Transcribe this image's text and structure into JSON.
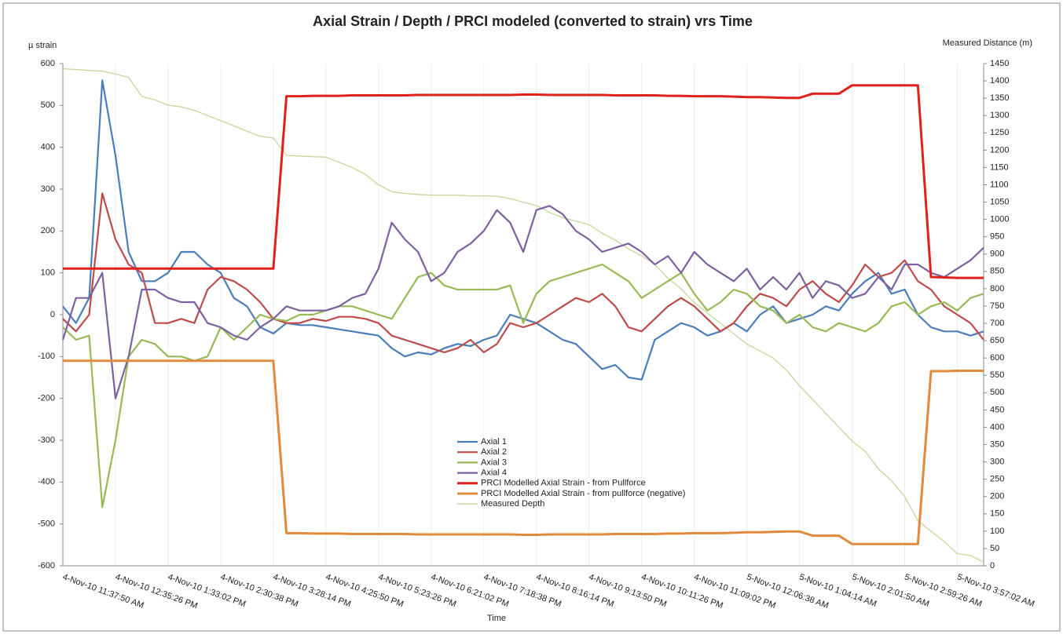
{
  "chart_data": {
    "type": "line",
    "title": "Axial Strain / Depth / PRCI modeled (converted to strain) vrs Time",
    "y_label": "µ strain",
    "y2_label": "Measured Distance (m)",
    "x_label": "Time",
    "categories": [
      "4-Nov-10 11:37:50 AM",
      null,
      null,
      null,
      "4-Nov-10 12:35:26 PM",
      null,
      null,
      null,
      "4-Nov-10 1:33:02 PM",
      null,
      null,
      null,
      "4-Nov-10 2:30:38 PM",
      null,
      null,
      null,
      "4-Nov-10 3:28:14 PM",
      null,
      null,
      null,
      "4-Nov-10 4:25:50 PM",
      null,
      null,
      null,
      "4-Nov-10 5:23:26 PM",
      null,
      null,
      null,
      "4-Nov-10 6:21:02 PM",
      null,
      null,
      null,
      "4-Nov-10 7:18:38 PM",
      null,
      null,
      null,
      "4-Nov-10 8:16:14 PM",
      null,
      null,
      null,
      "4-Nov-10 9:13:50 PM",
      null,
      null,
      null,
      "4-Nov-10 10:11:26 PM",
      null,
      null,
      null,
      "4-Nov-10 11:09:02 PM",
      null,
      null,
      null,
      "5-Nov-10 12:06:38 AM",
      null,
      null,
      null,
      "5-Nov-10 1:04:14 AM",
      null,
      null,
      null,
      "5-Nov-10 2:01:50 AM",
      null,
      null,
      null,
      "5-Nov-10 2:59:26 AM",
      null,
      null,
      null,
      "5-Nov-10 3:57:02 AM",
      null,
      null
    ],
    "series": [
      {
        "name": "Axial 1",
        "color": "#4a7ebb",
        "width": 2.2,
        "values": [
          20,
          -20,
          40,
          560,
          380,
          150,
          80,
          80,
          100,
          150,
          150,
          120,
          100,
          40,
          20,
          -30,
          -45,
          -20,
          -25,
          -25,
          -30,
          -35,
          -40,
          -45,
          -50,
          -80,
          -100,
          -90,
          -95,
          -80,
          -70,
          -75,
          -60,
          -50,
          0,
          -10,
          -20,
          -40,
          -60,
          -70,
          -100,
          -130,
          -120,
          -150,
          -155,
          -60,
          -40,
          -20,
          -30,
          -50,
          -40,
          -20,
          -40,
          0,
          20,
          -20,
          -10,
          0,
          20,
          10,
          50,
          80,
          100,
          50,
          60,
          0,
          -30,
          -40,
          -40,
          -50,
          -40
        ]
      },
      {
        "name": "Axial 2",
        "color": "#be4b48",
        "width": 2.2,
        "values": [
          -10,
          -40,
          0,
          290,
          180,
          120,
          100,
          -20,
          -20,
          -10,
          -20,
          60,
          90,
          80,
          60,
          30,
          -10,
          -20,
          -20,
          -10,
          -15,
          -5,
          -5,
          -10,
          -20,
          -50,
          -60,
          -70,
          -80,
          -90,
          -80,
          -60,
          -90,
          -70,
          -20,
          -30,
          -20,
          0,
          20,
          40,
          30,
          50,
          20,
          -30,
          -40,
          -10,
          20,
          40,
          20,
          -10,
          -40,
          -20,
          20,
          50,
          40,
          20,
          60,
          80,
          50,
          30,
          70,
          120,
          90,
          100,
          130,
          80,
          60,
          20,
          0,
          -20,
          -60
        ]
      },
      {
        "name": "Axial 3",
        "color": "#98b954",
        "width": 2.2,
        "values": [
          -30,
          -60,
          -50,
          -460,
          -300,
          -100,
          -60,
          -70,
          -100,
          -100,
          -110,
          -100,
          -30,
          -60,
          -30,
          0,
          -10,
          -15,
          0,
          0,
          10,
          20,
          20,
          10,
          0,
          -10,
          40,
          90,
          100,
          70,
          60,
          60,
          60,
          60,
          70,
          -20,
          50,
          80,
          90,
          100,
          110,
          120,
          100,
          80,
          40,
          60,
          80,
          100,
          50,
          10,
          30,
          60,
          50,
          20,
          10,
          -20,
          0,
          -30,
          -40,
          -20,
          -30,
          -40,
          -20,
          20,
          30,
          0,
          20,
          30,
          10,
          40,
          50
        ]
      },
      {
        "name": "Axial 4",
        "color": "#7d60a0",
        "width": 2.2,
        "values": [
          -60,
          40,
          40,
          100,
          -200,
          -100,
          60,
          60,
          40,
          30,
          30,
          -20,
          -30,
          -50,
          -60,
          -30,
          -10,
          20,
          10,
          10,
          10,
          20,
          40,
          50,
          110,
          220,
          180,
          150,
          80,
          100,
          150,
          170,
          200,
          250,
          220,
          150,
          250,
          260,
          240,
          200,
          180,
          150,
          160,
          170,
          150,
          120,
          140,
          100,
          150,
          120,
          100,
          80,
          110,
          60,
          90,
          60,
          100,
          40,
          80,
          70,
          40,
          50,
          90,
          60,
          120,
          120,
          100,
          90,
          110,
          130,
          160
        ]
      },
      {
        "name": "PRCI Modelled Axial Strain - from Pullforce",
        "color": "#e0201b",
        "width": 3,
        "values": [
          110,
          110,
          110,
          110,
          110,
          110,
          110,
          110,
          110,
          110,
          110,
          110,
          110,
          110,
          110,
          110,
          110,
          522,
          522,
          523,
          523,
          523,
          524,
          524,
          524,
          524,
          524,
          525,
          525,
          525,
          525,
          525,
          525,
          525,
          525,
          526,
          526,
          525,
          525,
          525,
          525,
          525,
          524,
          524,
          524,
          524,
          523,
          523,
          522,
          522,
          522,
          521,
          520,
          520,
          519,
          518,
          518,
          528,
          528,
          528,
          548,
          548,
          548,
          548,
          548,
          548,
          90,
          89,
          88,
          88,
          88
        ]
      },
      {
        "name": "PRCI Modelled Axial Strain - from pullforce (negative)",
        "color": "#e28a3b",
        "width": 3,
        "values": [
          -110,
          -110,
          -110,
          -110,
          -110,
          -110,
          -110,
          -110,
          -110,
          -110,
          -110,
          -110,
          -110,
          -110,
          -110,
          -110,
          -110,
          -522,
          -522,
          -523,
          -523,
          -523,
          -524,
          -524,
          -524,
          -524,
          -524,
          -525,
          -525,
          -525,
          -525,
          -525,
          -525,
          -525,
          -525,
          -526,
          -526,
          -525,
          -525,
          -525,
          -525,
          -525,
          -524,
          -524,
          -524,
          -524,
          -523,
          -523,
          -522,
          -522,
          -522,
          -521,
          -520,
          -520,
          -519,
          -518,
          -518,
          -528,
          -528,
          -528,
          -548,
          -548,
          -548,
          -548,
          -548,
          -548,
          -135,
          -135,
          -134,
          -134,
          -134
        ]
      },
      {
        "name": "Measured Depth",
        "color": "#c4d79b",
        "width": 1.3,
        "axis": "y2",
        "values": [
          1435,
          1433,
          1430,
          1428,
          1420,
          1410,
          1355,
          1345,
          1330,
          1325,
          1315,
          1300,
          1285,
          1270,
          1255,
          1240,
          1235,
          1185,
          1183,
          1181,
          1180,
          1165,
          1150,
          1130,
          1100,
          1080,
          1075,
          1072,
          1070,
          1070,
          1070,
          1068,
          1068,
          1067,
          1060,
          1050,
          1040,
          1020,
          1005,
          995,
          985,
          960,
          940,
          915,
          895,
          870,
          830,
          800,
          760,
          730,
          700,
          670,
          640,
          620,
          600,
          565,
          520,
          480,
          440,
          400,
          360,
          330,
          280,
          245,
          200,
          130,
          100,
          70,
          35,
          30,
          10
        ]
      }
    ],
    "ylim": [
      -600,
      600
    ],
    "yticks": [
      -600,
      -500,
      -400,
      -300,
      -200,
      -100,
      0,
      100,
      200,
      300,
      400,
      500,
      600
    ],
    "y2lim": [
      0,
      1450
    ],
    "y2ticks": [
      0,
      50,
      100,
      150,
      200,
      250,
      300,
      350,
      400,
      450,
      500,
      550,
      600,
      650,
      700,
      750,
      800,
      850,
      900,
      950,
      1000,
      1050,
      1100,
      1150,
      1200,
      1250,
      1300,
      1350,
      1400,
      1450
    ],
    "grid": true,
    "legend": "center"
  }
}
